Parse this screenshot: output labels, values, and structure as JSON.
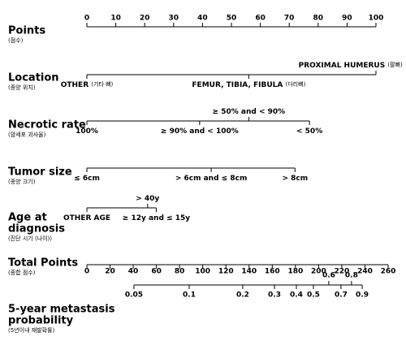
{
  "points_axis": {
    "label": "Points",
    "sublabel": "(점수)",
    "lim": [
      0,
      100
    ],
    "ticks": [
      0,
      10,
      20,
      30,
      40,
      50,
      60,
      70,
      80,
      90,
      100
    ]
  },
  "variables": [
    {
      "label": [
        "Location"
      ],
      "sublabel": "(종양 위치)",
      "levels": [
        {
          "label": "OTHER",
          "sublabel": "(기타 뼈)",
          "points": 0,
          "side": "below"
        },
        {
          "label": "FEMUR, TIBIA, FIBULA",
          "sublabel": "(다리뼈)",
          "points": 56,
          "side": "below"
        },
        {
          "label": "PROXIMAL HUMERUS",
          "sublabel": "(팔뼈)",
          "points": 100,
          "side": "above"
        }
      ]
    },
    {
      "label": [
        "Necrotic rate"
      ],
      "sublabel": "(암세포 괴사율)",
      "levels": [
        {
          "label": "100%",
          "points": 0,
          "side": "below"
        },
        {
          "label": "≥ 90% and < 100%",
          "points": 39,
          "side": "below"
        },
        {
          "label": "≥ 50% and < 90%",
          "points": 56,
          "side": "above"
        },
        {
          "label": "< 50%",
          "points": 77,
          "side": "below"
        }
      ]
    },
    {
      "label": [
        "Tumor size"
      ],
      "sublabel": "(종양 크기)",
      "levels": [
        {
          "label": "≤ 6cm",
          "points": 0,
          "side": "below"
        },
        {
          "label": "> 6cm and ≤ 8cm",
          "points": 43,
          "side": "below"
        },
        {
          "label": "> 8cm",
          "points": 72,
          "side": "below"
        }
      ]
    },
    {
      "label": [
        "Age at",
        "diagnosis"
      ],
      "sublabel": "(진단 시기 (나이))",
      "levels": [
        {
          "label": "OTHER AGE",
          "points": 0,
          "side": "below"
        },
        {
          "label": "> 40y",
          "points": 21,
          "side": "above"
        },
        {
          "label": "≥ 12y and ≤ 15y",
          "points": 24,
          "side": "below"
        }
      ]
    }
  ],
  "total_points_axis": {
    "label": "Total Points",
    "sublabel": "(종합 점수)",
    "lim": [
      0,
      260
    ],
    "ticks": [
      0,
      20,
      40,
      60,
      80,
      100,
      120,
      140,
      160,
      180,
      200,
      220,
      240,
      260
    ]
  },
  "probability_axis": {
    "label": [
      "5-year metastasis",
      "probability"
    ],
    "sublabel": "(5년이내 재발확률)",
    "ticks": [
      {
        "value": 0.05,
        "points": 40.6,
        "side": "below"
      },
      {
        "value": 0.1,
        "points": 88.3,
        "side": "below"
      },
      {
        "value": 0.2,
        "points": 134.5,
        "side": "below"
      },
      {
        "value": 0.3,
        "points": 161.9,
        "side": "below"
      },
      {
        "value": 0.4,
        "points": 180.8,
        "side": "below"
      },
      {
        "value": 0.5,
        "points": 195.5,
        "side": "below"
      },
      {
        "value": 0.6,
        "points": 208.8,
        "side": "above"
      },
      {
        "value": 0.7,
        "points": 219.3,
        "side": "below"
      },
      {
        "value": 0.8,
        "points": 228.4,
        "side": "above"
      },
      {
        "value": 0.9,
        "points": 237.6,
        "side": "below"
      }
    ]
  }
}
